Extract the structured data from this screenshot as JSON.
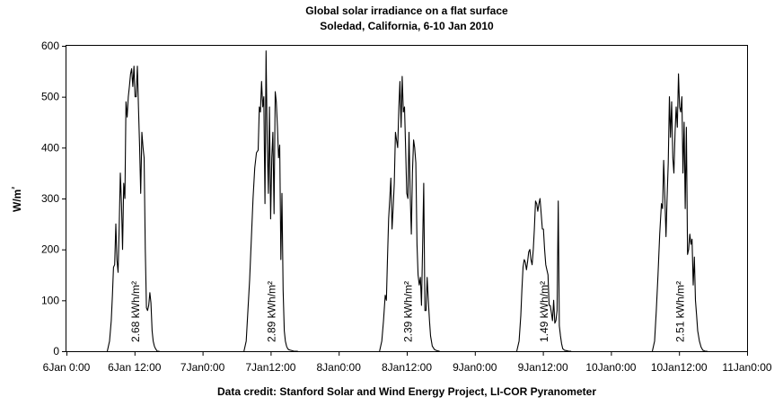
{
  "chart_data": {
    "type": "line",
    "title": "Global solar irradiance on a flat surface",
    "subtitle": "Soledad, California, 6-10 Jan 2010",
    "ylabel": "W/m²",
    "xlabel": "",
    "credit": "Data credit: Stanford Solar and Wind Energy Project, LI-COR Pyranometer",
    "ylim": [
      0,
      600
    ],
    "y_ticks": [
      0,
      100,
      200,
      300,
      400,
      500,
      600
    ],
    "xlim_hours": [
      0,
      120
    ],
    "x_ticks": [
      {
        "hour": 0,
        "label": "6Jan 0:00"
      },
      {
        "hour": 12,
        "label": "6Jan 12:00"
      },
      {
        "hour": 24,
        "label": "7Jan0:00"
      },
      {
        "hour": 36,
        "label": "7Jan12:00"
      },
      {
        "hour": 48,
        "label": "8Jan0:00"
      },
      {
        "hour": 60,
        "label": "8Jan12:00"
      },
      {
        "hour": 72,
        "label": "9Jan0:00"
      },
      {
        "hour": 84,
        "label": "9Jan12:00"
      },
      {
        "hour": 96,
        "label": "10Jan0:00"
      },
      {
        "hour": 108,
        "label": "10Jan12:00"
      },
      {
        "hour": 120,
        "label": "11Jan0:00"
      }
    ],
    "grid": false,
    "series": [
      {
        "x": [
          7.2,
          7.6,
          7.9,
          8.1,
          8.3,
          8.5,
          8.7,
          8.9,
          9.1,
          9.3,
          9.5,
          9.7,
          9.9,
          10.1,
          10.3,
          10.5,
          10.7,
          10.9,
          11.1,
          11.3,
          11.5,
          11.7,
          11.9,
          12.1,
          12.3,
          12.5,
          12.7,
          12.9,
          13.1,
          13.3,
          13.5,
          13.7,
          13.9,
          14.1,
          14.3,
          14.5,
          14.7,
          14.9,
          15.1,
          15.3,
          15.5,
          15.7,
          16.0,
          16.4
        ],
        "y": [
          0,
          20,
          60,
          110,
          165,
          170,
          250,
          180,
          155,
          240,
          350,
          290,
          200,
          330,
          300,
          490,
          460,
          500,
          520,
          545,
          555,
          520,
          560,
          500,
          500,
          560,
          480,
          400,
          310,
          430,
          400,
          380,
          200,
          85,
          80,
          90,
          115,
          95,
          40,
          20,
          10,
          5,
          0,
          0
        ]
      },
      {
        "x": [
          31.3,
          31.7,
          32.0,
          32.3,
          32.6,
          32.9,
          33.2,
          33.5,
          33.8,
          34.0,
          34.2,
          34.4,
          34.6,
          34.8,
          35.0,
          35.2,
          35.4,
          35.6,
          35.8,
          36.0,
          36.2,
          36.4,
          36.6,
          36.8,
          37.0,
          37.2,
          37.4,
          37.6,
          37.8,
          38.0,
          38.2,
          38.4,
          38.6,
          38.8,
          39.0,
          39.2,
          39.5,
          39.8,
          40.1,
          40.4,
          40.8
        ],
        "y": [
          0,
          20,
          80,
          140,
          220,
          300,
          360,
          390,
          395,
          480,
          470,
          530,
          480,
          500,
          290,
          590,
          410,
          310,
          480,
          260,
          380,
          430,
          270,
          510,
          490,
          440,
          380,
          405,
          180,
          310,
          120,
          40,
          20,
          10,
          5,
          3,
          2,
          1,
          0,
          0,
          0
        ]
      },
      {
        "x": [
          55.2,
          55.6,
          55.9,
          56.2,
          56.4,
          56.6,
          56.8,
          57.0,
          57.2,
          57.4,
          57.6,
          57.8,
          58.0,
          58.2,
          58.4,
          58.6,
          58.8,
          59.0,
          59.2,
          59.4,
          59.6,
          59.8,
          60.0,
          60.2,
          60.4,
          60.6,
          60.8,
          61.0,
          61.2,
          61.4,
          61.6,
          61.8,
          62.0,
          62.2,
          62.4,
          62.6,
          62.8,
          63.0,
          63.2,
          63.4,
          63.6,
          63.8,
          64.0,
          64.2,
          64.5,
          64.9,
          65.3,
          65.8
        ],
        "y": [
          0,
          20,
          60,
          110,
          100,
          180,
          260,
          300,
          340,
          240,
          280,
          330,
          430,
          415,
          400,
          480,
          530,
          440,
          540,
          470,
          480,
          400,
          310,
          300,
          430,
          310,
          230,
          350,
          415,
          400,
          370,
          210,
          150,
          130,
          145,
          90,
          210,
          330,
          80,
          80,
          145,
          100,
          60,
          30,
          10,
          3,
          1,
          0
        ]
      },
      {
        "x": [
          79.4,
          79.8,
          80.1,
          80.3,
          80.5,
          80.7,
          80.9,
          81.1,
          81.3,
          81.5,
          81.7,
          81.9,
          82.1,
          82.3,
          82.5,
          82.7,
          82.9,
          83.1,
          83.3,
          83.5,
          83.7,
          83.9,
          84.1,
          84.3,
          84.5,
          84.7,
          84.9,
          85.1,
          85.3,
          85.5,
          85.7,
          85.9,
          86.1,
          86.3,
          86.5,
          86.7,
          86.9,
          87.1,
          87.3,
          87.5,
          87.8,
          88.2,
          88.6,
          89.0
        ],
        "y": [
          0,
          20,
          70,
          120,
          165,
          180,
          175,
          160,
          175,
          195,
          200,
          180,
          170,
          200,
          240,
          295,
          290,
          275,
          290,
          300,
          270,
          240,
          240,
          200,
          170,
          160,
          150,
          90,
          90,
          75,
          60,
          100,
          55,
          60,
          80,
          295,
          50,
          30,
          15,
          5,
          2,
          1,
          0,
          0
        ]
      },
      {
        "x": [
          103.3,
          103.7,
          104.0,
          104.3,
          104.6,
          104.9,
          105.1,
          105.3,
          105.5,
          105.7,
          105.9,
          106.1,
          106.3,
          106.5,
          106.7,
          106.9,
          107.1,
          107.3,
          107.5,
          107.7,
          107.9,
          108.1,
          108.3,
          108.5,
          108.7,
          108.9,
          109.1,
          109.3,
          109.5,
          109.7,
          109.9,
          110.1,
          110.3,
          110.5,
          110.7,
          110.9,
          111.1,
          111.3,
          111.6,
          111.9,
          112.2,
          112.6,
          113.0
        ],
        "y": [
          0,
          20,
          80,
          150,
          230,
          290,
          280,
          375,
          305,
          225,
          300,
          370,
          500,
          420,
          490,
          380,
          350,
          430,
          480,
          440,
          545,
          480,
          470,
          500,
          350,
          450,
          280,
          440,
          190,
          200,
          230,
          210,
          220,
          130,
          185,
          100,
          70,
          40,
          20,
          8,
          2,
          0,
          0
        ]
      }
    ],
    "annotations": [
      {
        "hour": 12.2,
        "text": "2.68 kWh/m²"
      },
      {
        "hour": 36.2,
        "text": "2.89 kWh/m²"
      },
      {
        "hour": 60.2,
        "text": "2.39 kWh/m²"
      },
      {
        "hour": 84.2,
        "text": "1.49 kWh/m²"
      },
      {
        "hour": 108.2,
        "text": "2.51 kWh/m²"
      }
    ],
    "line_color": "#000000"
  }
}
